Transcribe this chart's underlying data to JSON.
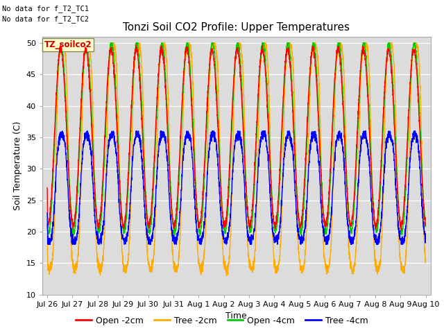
{
  "title": "Tonzi Soil CO2 Profile: Upper Temperatures",
  "ylabel": "Soil Temperature (C)",
  "xlabel": "Time",
  "ylim": [
    10,
    51
  ],
  "yticks": [
    10,
    15,
    20,
    25,
    30,
    35,
    40,
    45,
    50
  ],
  "background_color": "#dcdcdc",
  "figure_bg": "#ffffff",
  "no_data_text1": "No data for f_T2_TC1",
  "no_data_text2": "No data for f_T2_TC2",
  "label_box_text": "TZ_soilco2",
  "legend_entries": [
    "Open -2cm",
    "Tree -2cm",
    "Open -4cm",
    "Tree -4cm"
  ],
  "legend_colors": [
    "#ff0000",
    "#ffaa00",
    "#00cc00",
    "#0000ff"
  ],
  "line_colors": {
    "open_2cm": "#ff0000",
    "tree_2cm": "#ffaa00",
    "open_4cm": "#00cc00",
    "tree_4cm": "#0000ff"
  },
  "x_tick_labels": [
    "Jul 26",
    "Jul 27",
    "Jul 28",
    "Jul 29",
    "Jul 30",
    "Jul 31",
    "Aug 1",
    "Aug 2",
    "Aug 3",
    "Aug 4",
    "Aug 5",
    "Aug 6",
    "Aug 7",
    "Aug 8",
    "Aug 9",
    "Aug 10"
  ],
  "figsize": [
    6.4,
    4.8
  ],
  "dpi": 100
}
